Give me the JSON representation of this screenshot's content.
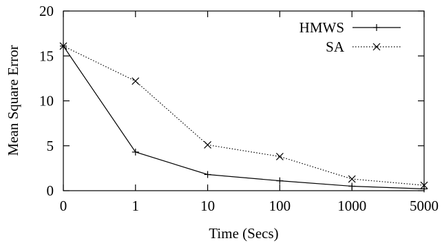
{
  "chart_data": {
    "type": "line",
    "title": "",
    "xlabel": "Time (Secs)",
    "ylabel": "Mean Square Error",
    "categories": [
      "0",
      "1",
      "10",
      "100",
      "1000",
      "5000"
    ],
    "ylim": [
      0,
      20
    ],
    "yticks": [
      0,
      5,
      10,
      15,
      20
    ],
    "grid": false,
    "legend": "top-right",
    "series": [
      {
        "name": "HMWS",
        "values": [
          16.1,
          4.3,
          1.8,
          1.1,
          0.5,
          0.2
        ],
        "marker": "plus",
        "line": "solid",
        "color": "#000000"
      },
      {
        "name": "SA",
        "values": [
          16.1,
          12.2,
          5.1,
          3.8,
          1.3,
          0.6
        ],
        "marker": "cross",
        "line": "dotted",
        "color": "#000000"
      }
    ]
  }
}
